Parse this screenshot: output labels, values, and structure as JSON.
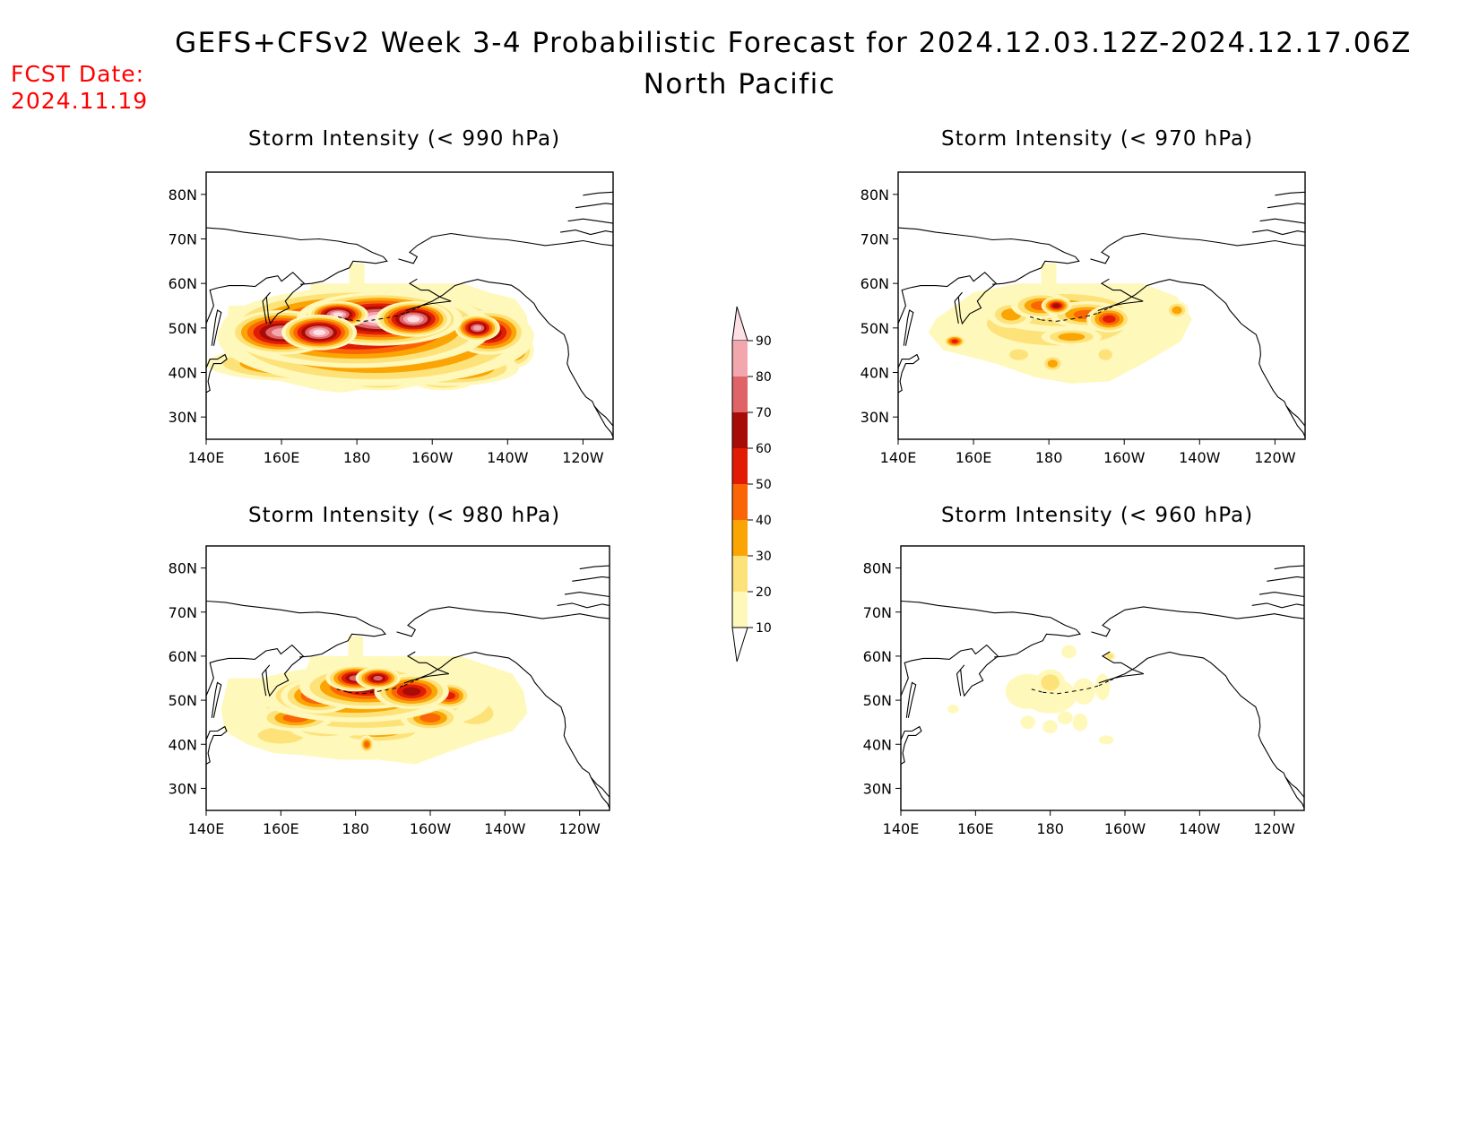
{
  "header": {
    "title": "GEFS+CFSv2 Week 3-4 Probabilistic Forecast for 2024.12.03.12Z-2024.12.17.06Z",
    "region": "North Pacific",
    "fcst_label": "FCST Date:",
    "fcst_date": "2024.11.19"
  },
  "axes": {
    "x_ticks": [
      "140E",
      "160E",
      "180",
      "160W",
      "140W",
      "120W"
    ],
    "y_ticks": [
      "80N",
      "70N",
      "60N",
      "50N",
      "40N",
      "30N"
    ],
    "lon_range": [
      "140E",
      "112W"
    ],
    "lat_range": [
      "25N",
      "85N"
    ]
  },
  "panels": [
    {
      "id": "p990",
      "title": "Storm Intensity (< 990 hPa)",
      "max_probability": 90,
      "position": "top-left"
    },
    {
      "id": "p970",
      "title": "Storm Intensity (< 970 hPa)",
      "max_probability": 60,
      "position": "top-right"
    },
    {
      "id": "p980",
      "title": "Storm Intensity (< 980 hPa)",
      "max_probability": 80,
      "position": "bottom-left"
    },
    {
      "id": "p960",
      "title": "Storm Intensity (< 960 hPa)",
      "max_probability": 30,
      "position": "bottom-right"
    }
  ],
  "colorbar": {
    "labels": [
      "90",
      "80",
      "70",
      "60",
      "50",
      "40",
      "30",
      "20",
      "10"
    ],
    "colors": {
      "90": "#fde0e4",
      "80": "#f2a6ad",
      "70": "#df6468",
      "60": "#a80c07",
      "50": "#e21b05",
      "40": "#fa6605",
      "30": "#fba505",
      "20": "#fde27a",
      "10": "#fff8bb"
    }
  },
  "colors": {
    "fcst_date": "#ff0000",
    "coastline": "#000000"
  }
}
